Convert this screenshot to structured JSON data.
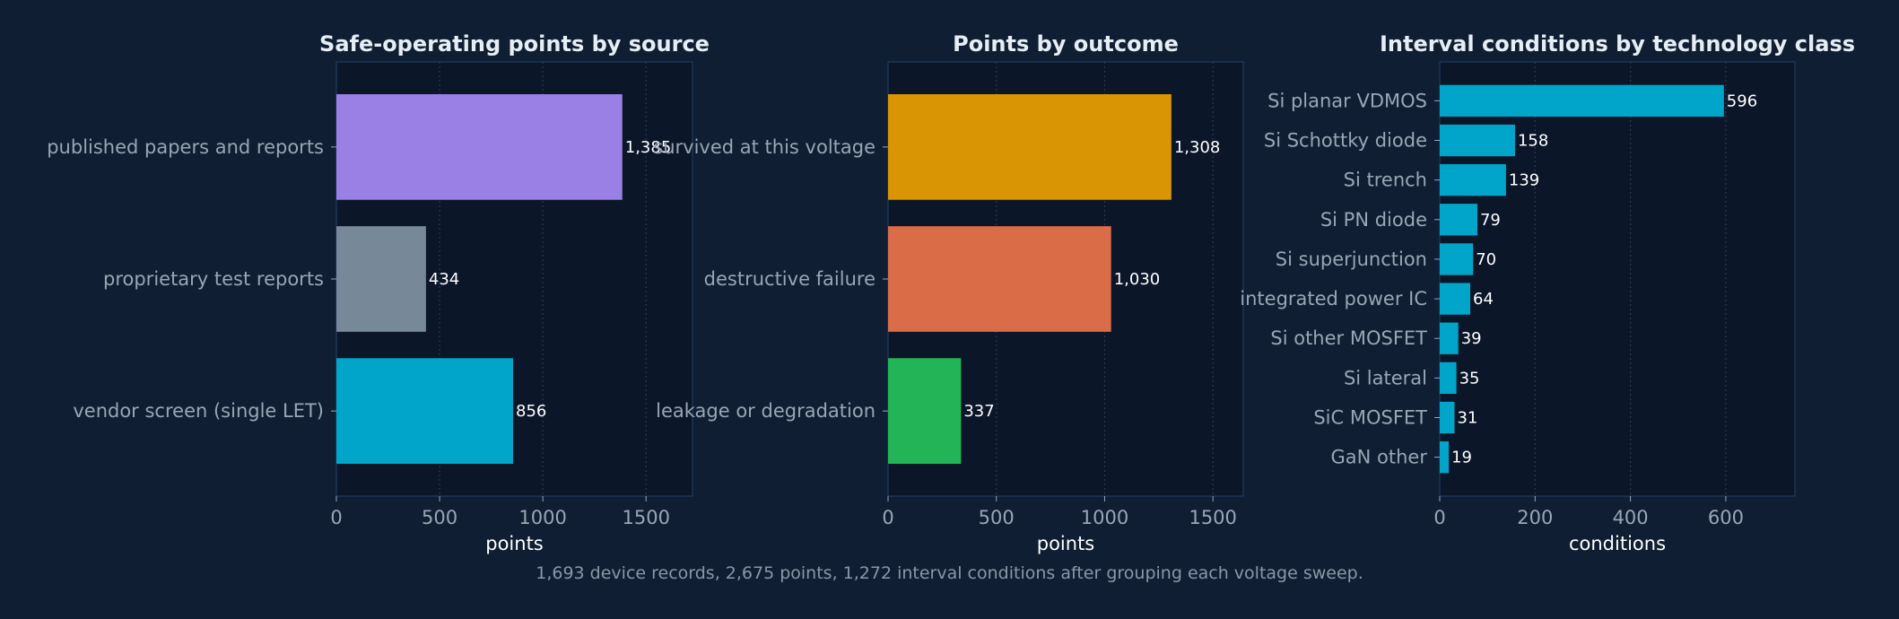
{
  "caption": "1,693 device records, 2,675 points, 1,272 interval conditions after grouping each voltage sweep.",
  "colors": {
    "background": "#0f1e33",
    "plot_background": "#0b1629",
    "frame": "#26406a",
    "grid": "#2a3a52"
  },
  "chart_data": [
    {
      "type": "bar",
      "orientation": "horizontal",
      "title": "Safe-operating points by source",
      "xlabel": "points",
      "categories": [
        "published papers and reports",
        "proprietary test reports",
        "vendor screen (single LET)"
      ],
      "values": [
        1385,
        434,
        856
      ],
      "value_labels": [
        "1,385",
        "434",
        "856"
      ],
      "colors": [
        "#9a80e4",
        "#778899",
        "#00a5c9"
      ],
      "xlim": [
        0,
        1725
      ],
      "xticks": [
        0,
        500,
        1000,
        1500
      ],
      "grid": true
    },
    {
      "type": "bar",
      "orientation": "horizontal",
      "title": "Points by outcome",
      "xlabel": "points",
      "categories": [
        "survived at this voltage",
        "destructive failure",
        "leakage or degradation"
      ],
      "values": [
        1308,
        1030,
        337
      ],
      "value_labels": [
        "1,308",
        "1,030",
        "337"
      ],
      "colors": [
        "#d99504",
        "#da6c48",
        "#22b457"
      ],
      "xlim": [
        0,
        1640
      ],
      "xticks": [
        0,
        500,
        1000,
        1500
      ],
      "grid": true
    },
    {
      "type": "bar",
      "orientation": "horizontal",
      "title": "Interval conditions by technology class",
      "xlabel": "conditions",
      "categories": [
        "Si planar VDMOS",
        "Si Schottky diode",
        "Si trench",
        "Si PN diode",
        "Si superjunction",
        "integrated power IC",
        "Si other MOSFET",
        "Si lateral",
        "SiC MOSFET",
        "GaN other"
      ],
      "values": [
        596,
        158,
        139,
        79,
        70,
        64,
        39,
        35,
        31,
        19
      ],
      "value_labels": [
        "596",
        "158",
        "139",
        "79",
        "70",
        "64",
        "39",
        "35",
        "31",
        "19"
      ],
      "colors": [
        "#00a5c9"
      ],
      "xlim": [
        0,
        745
      ],
      "xticks": [
        0,
        200,
        400,
        600
      ],
      "grid": true
    }
  ]
}
